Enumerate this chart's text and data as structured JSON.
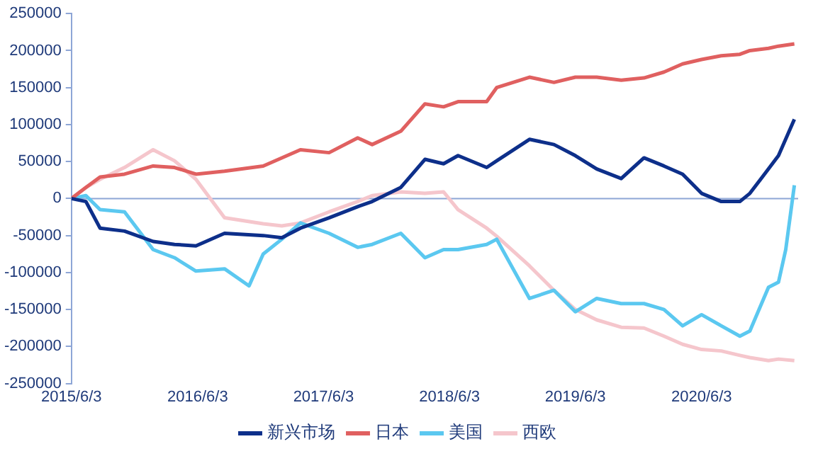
{
  "chart_data": {
    "type": "line",
    "x": [
      "2015-06-03",
      "2015-07-15",
      "2015-08-25",
      "2015-11-04",
      "2016-01-26",
      "2016-03-28",
      "2016-05-29",
      "2016-08-20",
      "2016-12-10",
      "2017-02-02",
      "2017-03-28",
      "2017-06-19",
      "2017-09-10",
      "2017-10-22",
      "2018-01-13",
      "2018-03-24",
      "2018-05-17",
      "2018-06-28",
      "2018-09-19",
      "2018-10-18",
      "2019-01-21",
      "2019-04-02",
      "2019-06-03",
      "2019-08-04",
      "2019-10-14",
      "2019-12-19",
      "2020-02-15",
      "2020-04-09",
      "2020-06-03",
      "2020-07-30",
      "2020-09-22",
      "2020-10-21",
      "2020-12-14",
      "2021-01-12",
      "2021-02-27"
    ],
    "series": [
      {
        "name": "新兴市场",
        "color": "#0d2f8a",
        "values": [
          0,
          -4000,
          -40000,
          -44000,
          -58000,
          -62000,
          -64000,
          -47000,
          -50000,
          -53000,
          -40000,
          -26000,
          -11000,
          -4000,
          15000,
          53000,
          47000,
          58000,
          42000,
          51000,
          80000,
          73000,
          58000,
          40000,
          27000,
          55000,
          44000,
          33000,
          7000,
          -4000,
          -4000,
          7000,
          40000,
          58000,
          107000
        ]
      },
      {
        "name": "日本",
        "color": "#e06060",
        "values": [
          0,
          15000,
          29000,
          33000,
          44000,
          42000,
          33000,
          37000,
          44000,
          55000,
          66000,
          62000,
          82000,
          73000,
          91000,
          128000,
          124000,
          131000,
          131000,
          150000,
          164000,
          157000,
          164000,
          164000,
          160000,
          163000,
          171000,
          182000,
          188000,
          193000,
          195000,
          200000,
          203000,
          206000,
          209000
        ]
      },
      {
        "name": "美国",
        "color": "#5bc8f0",
        "x": [
          "2015-06-03",
          "2015-07-15",
          "2015-08-25",
          "2015-11-04",
          "2016-01-26",
          "2016-03-28",
          "2016-05-29",
          "2016-08-20",
          "2016-10-30",
          "2016-12-10",
          "2017-02-02",
          "2017-03-28",
          "2017-06-19",
          "2017-09-10",
          "2017-10-22",
          "2018-01-13",
          "2018-03-24",
          "2018-05-17",
          "2018-06-28",
          "2018-09-19",
          "2018-10-18",
          "2019-01-21",
          "2019-04-02",
          "2019-06-03",
          "2019-08-04",
          "2019-10-14",
          "2019-12-19",
          "2020-02-15",
          "2020-04-09",
          "2020-06-03",
          "2020-07-30",
          "2020-09-22",
          "2020-10-21",
          "2020-12-14",
          "2021-01-12",
          "2021-02-02",
          "2021-02-27"
        ],
        "values": [
          0,
          4000,
          -15000,
          -18000,
          -69000,
          -80000,
          -98000,
          -95000,
          -118000,
          -75000,
          -55000,
          -33000,
          -47000,
          -66000,
          -62000,
          -47000,
          -80000,
          -69000,
          -69000,
          -62000,
          -55000,
          -135000,
          -124000,
          -153000,
          -135000,
          -142000,
          -142000,
          -150000,
          -172000,
          -157000,
          -172000,
          -186000,
          -179000,
          -120000,
          -113000,
          -69000,
          18000
        ]
      },
      {
        "name": "西欧",
        "color": "#f5c6cc",
        "values": [
          0,
          15000,
          26000,
          42000,
          66000,
          51000,
          26000,
          -26000,
          -34000,
          -37000,
          -33000,
          -18000,
          -4000,
          4000,
          9000,
          7000,
          9000,
          -15000,
          -40000,
          -51000,
          -91000,
          -124000,
          -150000,
          -164000,
          -174000,
          -175000,
          -186000,
          -197000,
          -204000,
          -206000,
          -212000,
          -215000,
          -219000,
          -217000,
          -219000
        ]
      }
    ],
    "xlim": [
      "2015-06-03",
      "2021-03-10"
    ],
    "xticks": [
      {
        "value": "2015-06-03",
        "label": "2015/6/3"
      },
      {
        "value": "2016-06-03",
        "label": "2016/6/3"
      },
      {
        "value": "2017-06-03",
        "label": "2017/6/3"
      },
      {
        "value": "2018-06-03",
        "label": "2018/6/3"
      },
      {
        "value": "2019-06-03",
        "label": "2019/6/3"
      },
      {
        "value": "2020-06-03",
        "label": "2020/6/3"
      }
    ],
    "ylim": [
      -250000,
      250000
    ],
    "yticks": [
      -250000,
      -200000,
      -150000,
      -100000,
      -50000,
      0,
      50000,
      100000,
      150000,
      200000,
      250000
    ],
    "ref_lines": [
      {
        "axis": "y",
        "value": 0,
        "color": "#8ea6d6"
      }
    ],
    "grid": false,
    "legend": "bottom",
    "marker": "none",
    "line_style": "solid"
  }
}
